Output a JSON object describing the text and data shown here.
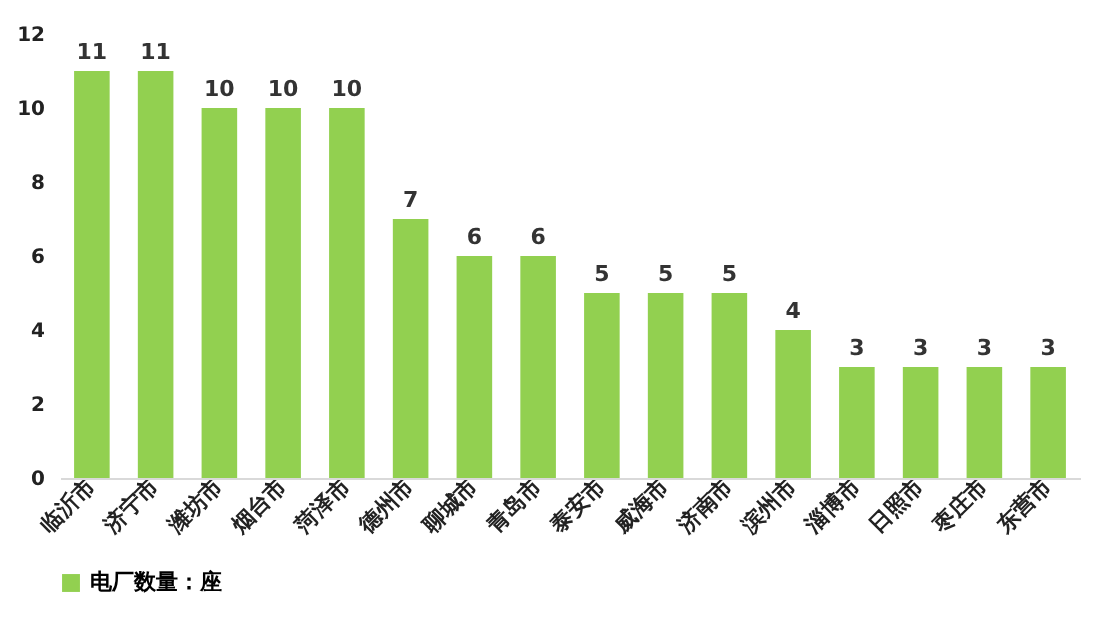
{
  "chart_data": {
    "type": "bar",
    "categories": [
      "临沂市",
      "济宁市",
      "潍坊市",
      "烟台市",
      "菏泽市",
      "德州市",
      "聊城市",
      "青岛市",
      "泰安市",
      "威海市",
      "济南市",
      "滨州市",
      "淄博市",
      "日照市",
      "枣庄市",
      "东营市"
    ],
    "series": [
      {
        "name": "电厂数量：座",
        "color": "#92d050",
        "values": [
          11,
          11,
          10,
          10,
          10,
          7,
          6,
          6,
          5,
          5,
          5,
          4,
          3,
          3,
          3,
          3
        ]
      }
    ],
    "ylim": [
      0,
      12
    ],
    "yticks": [
      0,
      2,
      4,
      6,
      8,
      10,
      12
    ],
    "grid": false,
    "legend": "bottom",
    "data_labels": true
  }
}
